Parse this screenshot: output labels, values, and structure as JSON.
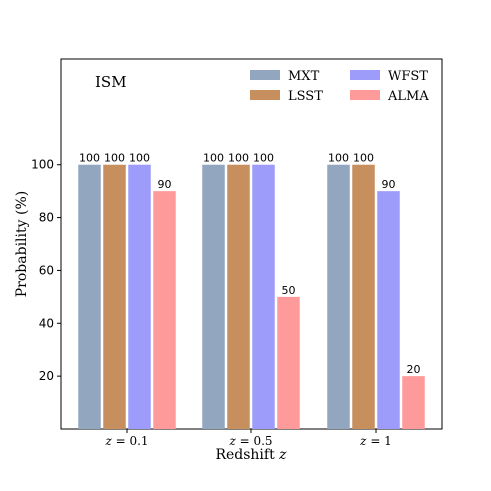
{
  "chart_data": {
    "type": "bar",
    "annotation": "ISM",
    "categories": [
      "z = 0.1",
      "z = 0.5",
      "z = 1"
    ],
    "xlabel": "Redshift z",
    "ylabel": "Probability (%)",
    "yticks": [
      20,
      40,
      60,
      80,
      100
    ],
    "ylim": [
      0,
      140
    ],
    "grid": false,
    "legend_position": "top-right",
    "series": [
      {
        "name": "MXT",
        "color": "#93a6bf",
        "values": [
          100,
          100,
          100
        ]
      },
      {
        "name": "LSST",
        "color": "#c78f5d",
        "values": [
          100,
          100,
          100
        ]
      },
      {
        "name": "WFST",
        "color": "#9e9cfa",
        "values": [
          100,
          100,
          90
        ]
      },
      {
        "name": "ALMA",
        "color": "#ff9a9a",
        "values": [
          90,
          50,
          20
        ]
      }
    ]
  }
}
